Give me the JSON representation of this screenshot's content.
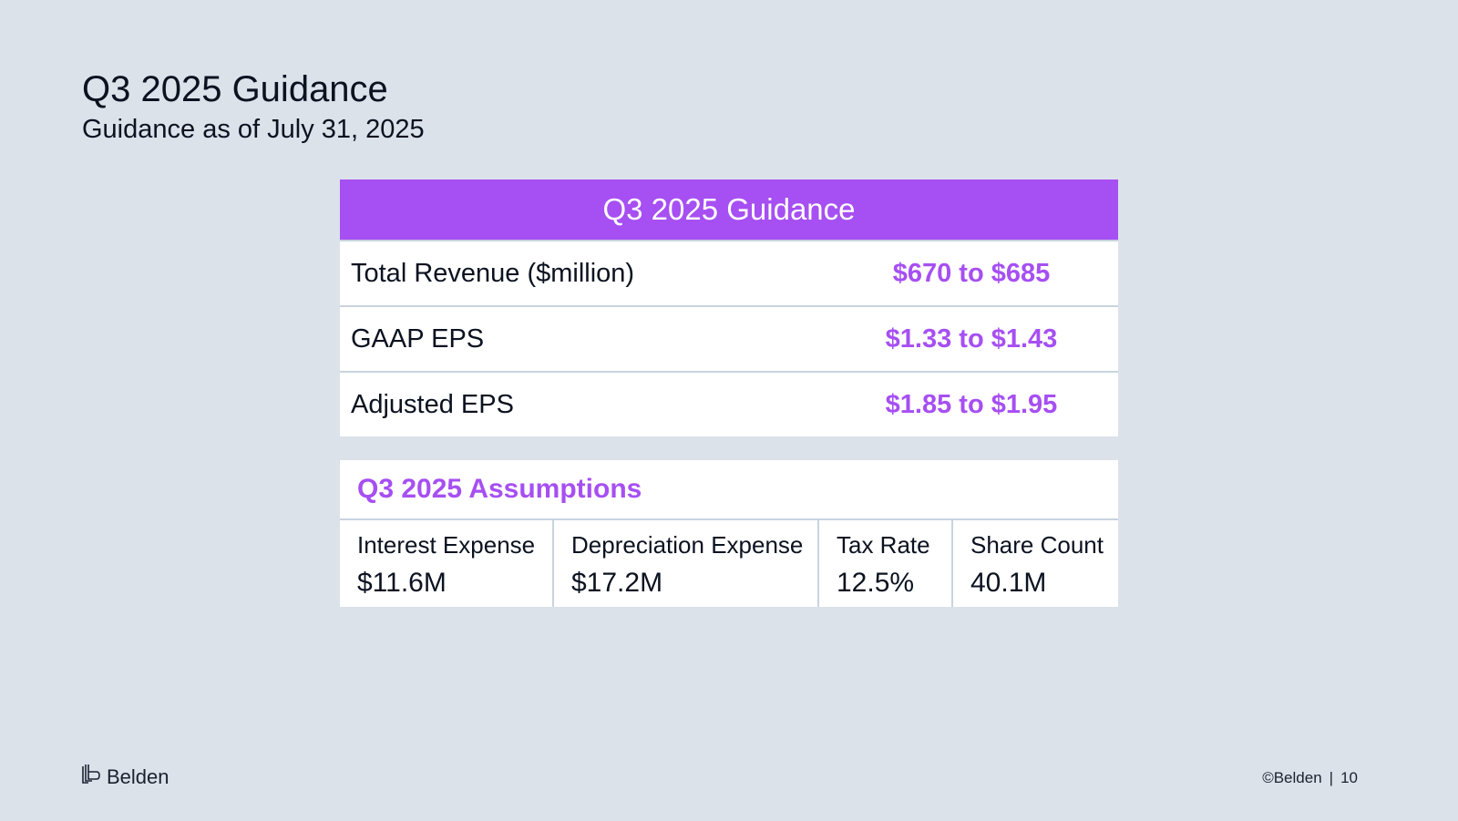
{
  "page": {
    "title": "Q3 2025 Guidance",
    "subtitle": "Guidance as of July 31, 2025"
  },
  "guidance": {
    "header": "Q3 2025 Guidance",
    "rows": [
      {
        "label": "Total Revenue ($million)",
        "value": "$670 to $685"
      },
      {
        "label": "GAAP EPS",
        "value": "$1.33 to $1.43"
      },
      {
        "label": "Adjusted EPS",
        "value": "$1.85 to $1.95"
      }
    ]
  },
  "assumptions": {
    "title": "Q3 2025 Assumptions",
    "items": [
      {
        "label": "Interest Expense",
        "value": "$11.6M"
      },
      {
        "label": "Depreciation Expense",
        "value": "$17.2M"
      },
      {
        "label": "Tax Rate",
        "value": "12.5%"
      },
      {
        "label": "Share Count",
        "value": "40.1M"
      }
    ]
  },
  "footer": {
    "logo_text": "Belden",
    "logo_icon": "belden-logo-icon",
    "copyright": "©Belden",
    "page_number": "10"
  },
  "colors": {
    "accent": "#a64ff2",
    "background": "#dbe2ea"
  }
}
